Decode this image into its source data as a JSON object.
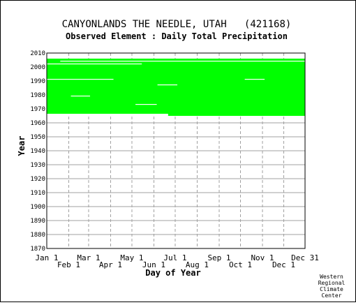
{
  "chart_data": {
    "type": "scatter",
    "title": "CANYONLANDS THE NEEDLE, UTAH   (421168)",
    "subtitle": "Observed Element : Daily Total Precipitation",
    "xlabel": "Day of Year",
    "ylabel": "Year",
    "ylim": [
      1870,
      2010
    ],
    "xlim": [
      1,
      365
    ],
    "grid": true,
    "yticks": [
      "1870",
      "1880",
      "1890",
      "1900",
      "1910",
      "1920",
      "1930",
      "1940",
      "1950",
      "1960",
      "1970",
      "1980",
      "1990",
      "2000",
      "2010"
    ],
    "xticks_upper": [
      {
        "label": "Jan 1",
        "day": 1
      },
      {
        "label": "Mar 1",
        "day": 60
      },
      {
        "label": "May 1",
        "day": 121
      },
      {
        "label": "Jul 1",
        "day": 182
      },
      {
        "label": "Sep 1",
        "day": 244
      },
      {
        "label": "Nov 1",
        "day": 305
      },
      {
        "label": "Dec 31",
        "day": 365
      }
    ],
    "xticks_lower": [
      {
        "label": "Feb 1",
        "day": 32
      },
      {
        "label": "Apr 1",
        "day": 91
      },
      {
        "label": "Jun 1",
        "day": 152
      },
      {
        "label": "Aug 1",
        "day": 213
      },
      {
        "label": "Oct 1",
        "day": 274
      },
      {
        "label": "Dec 1",
        "day": 335
      }
    ],
    "series": [
      {
        "color": "#00ff00",
        "coverage": [
          {
            "year_start": 1966,
            "year_end": 2005,
            "day_start": 1,
            "day_end": 365
          },
          {
            "year_start": 1965,
            "year_end": 1965,
            "day_start": 172,
            "day_end": 365
          }
        ],
        "missing": [
          {
            "year": 1991,
            "day_start": 1,
            "day_end": 95
          },
          {
            "year": 1979,
            "day_start": 35,
            "day_end": 62
          },
          {
            "year": 1987,
            "day_start": 157,
            "day_end": 185
          },
          {
            "year": 1973,
            "day_start": 126,
            "day_end": 156
          },
          {
            "year": 1991,
            "day_start": 280,
            "day_end": 308
          },
          {
            "year": 2002,
            "day_start": 1,
            "day_end": 135
          },
          {
            "year": 2004,
            "day_start": 20,
            "day_end": 365
          },
          {
            "year": 1966,
            "day_start": 1,
            "day_end": 172
          }
        ]
      }
    ],
    "grid_color": "#a0a0a0"
  },
  "credit": [
    "Western",
    "Regional",
    "Climate",
    "Center"
  ]
}
